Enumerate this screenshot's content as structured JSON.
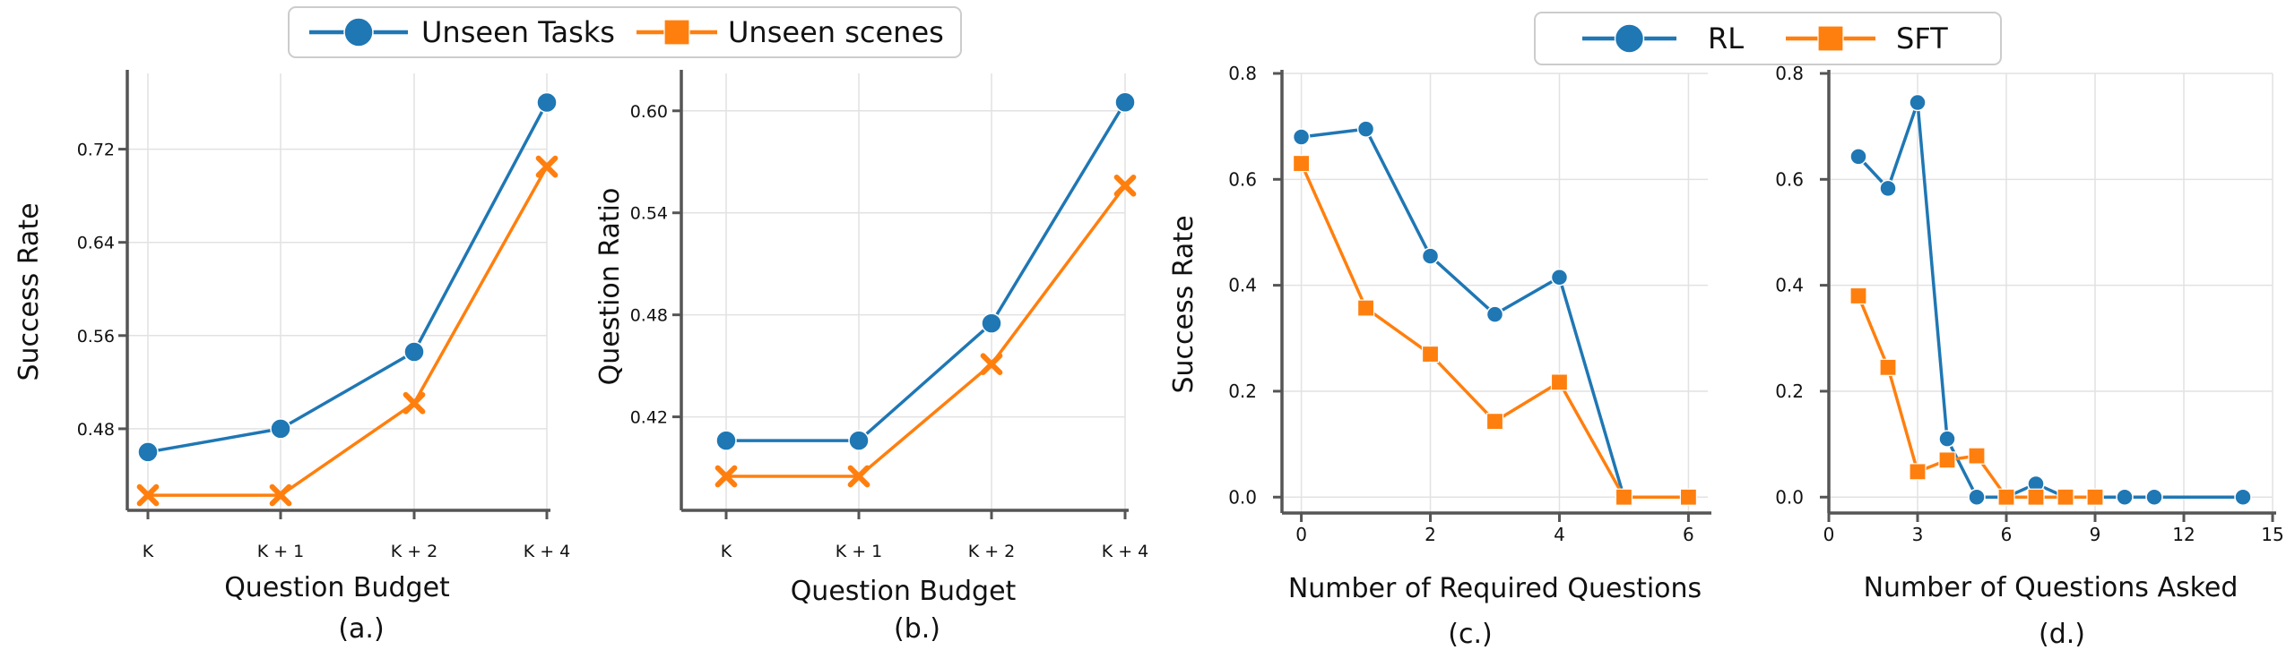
{
  "legends": {
    "left": [
      {
        "label": "Unseen Tasks",
        "color": "#1f77b4",
        "marker": "circle"
      },
      {
        "label": "Unseen scenes",
        "color": "#ff7f0e",
        "marker": "square"
      }
    ],
    "right": [
      {
        "label": "RL",
        "color": "#1f77b4",
        "marker": "circle"
      },
      {
        "label": "SFT",
        "color": "#ff7f0e",
        "marker": "square"
      }
    ]
  },
  "chart_data": [
    {
      "type": "line",
      "caption": "(a.)",
      "xlabel": "Question Budget",
      "ylabel": "Success Rate",
      "categories": [
        "K",
        "K + 1",
        "K + 2",
        "K + 4"
      ],
      "yticks": [
        "0.48",
        "0.56",
        "0.64",
        "0.72"
      ],
      "ylim": [
        0.41,
        0.785
      ],
      "series": [
        {
          "name": "Unseen Tasks",
          "color": "#1f77b4",
          "marker": "circle",
          "values": [
            0.46,
            0.48,
            0.546,
            0.76
          ]
        },
        {
          "name": "Unseen scenes",
          "color": "#ff7f0e",
          "marker": "x",
          "values": [
            0.423,
            0.423,
            0.502,
            0.705
          ]
        }
      ]
    },
    {
      "type": "line",
      "caption": "(b.)",
      "xlabel": "Question Budget",
      "ylabel": "Question Ratio",
      "categories": [
        "K",
        "K + 1",
        "K + 2",
        "K + 4"
      ],
      "yticks": [
        "0.42",
        "0.48",
        "0.54",
        "0.60"
      ],
      "ylim": [
        0.365,
        0.622
      ],
      "series": [
        {
          "name": "Unseen Tasks",
          "color": "#1f77b4",
          "marker": "circle",
          "values": [
            0.406,
            0.406,
            0.475,
            0.605
          ]
        },
        {
          "name": "Unseen scenes",
          "color": "#ff7f0e",
          "marker": "x",
          "values": [
            0.385,
            0.385,
            0.451,
            0.556
          ]
        }
      ]
    },
    {
      "type": "line",
      "caption": "(c.)",
      "xlabel": "Number of Required Questions",
      "ylabel": "Success Rate",
      "x_ticks": [
        "0",
        "2",
        "4",
        "6"
      ],
      "xlim": [
        -0.3,
        6.3
      ],
      "yticks": [
        "0.0",
        "0.2",
        "0.4",
        "0.6",
        "0.8"
      ],
      "ylim": [
        -0.03,
        0.8
      ],
      "series": [
        {
          "name": "RL",
          "color": "#1f77b4",
          "marker": "circle",
          "x": [
            0,
            1,
            2,
            3,
            4,
            5
          ],
          "values": [
            0.68,
            0.695,
            0.455,
            0.345,
            0.415,
            0.0
          ]
        },
        {
          "name": "SFT",
          "color": "#ff7f0e",
          "marker": "square",
          "x": [
            0,
            1,
            2,
            3,
            4,
            5,
            6
          ],
          "values": [
            0.63,
            0.357,
            0.27,
            0.143,
            0.217,
            0.0,
            0.0
          ]
        }
      ]
    },
    {
      "type": "line",
      "caption": "(d.)",
      "xlabel": "Number of Questions Asked",
      "ylabel": "",
      "x_ticks": [
        "0",
        "3",
        "6",
        "9",
        "12",
        "15"
      ],
      "xlim": [
        0,
        15
      ],
      "yticks": [
        "0.0",
        "0.2",
        "0.4",
        "0.6",
        "0.8"
      ],
      "ylim": [
        -0.03,
        0.8
      ],
      "series": [
        {
          "name": "RL",
          "color": "#1f77b4",
          "marker": "circle",
          "x": [
            1,
            2,
            3,
            4,
            5,
            6,
            7,
            8,
            9,
            10,
            11,
            14
          ],
          "values": [
            0.643,
            0.583,
            0.745,
            0.11,
            0.0,
            0.0,
            0.025,
            0.0,
            0.0,
            0.0,
            0.0,
            0.0
          ]
        },
        {
          "name": "SFT",
          "color": "#ff7f0e",
          "marker": "square",
          "x": [
            1,
            2,
            3,
            4,
            5,
            6,
            7,
            8,
            9
          ],
          "values": [
            0.38,
            0.245,
            0.048,
            0.07,
            0.078,
            0.0,
            0.0,
            0.0,
            0.0
          ]
        }
      ]
    }
  ]
}
